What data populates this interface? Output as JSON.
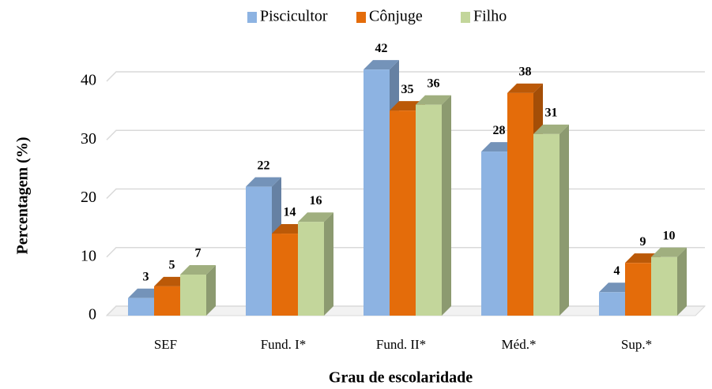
{
  "chart_data": {
    "type": "bar3d",
    "x_label": "Grau de escolaridade",
    "y_label": "Percentagem (%)",
    "categories": [
      "SEF",
      "Fund. I*",
      "Fund. II*",
      "Méd.*",
      "Sup.*"
    ],
    "series": [
      {
        "name": "Piscicultor",
        "color": "#8db3e2",
        "values": [
          3,
          22,
          42,
          28,
          4
        ]
      },
      {
        "name": "Cônjuge",
        "color": "#e46c0a",
        "values": [
          5,
          14,
          35,
          38,
          9
        ]
      },
      {
        "name": "Filho",
        "color": "#c3d69b",
        "values": [
          7,
          16,
          36,
          31,
          10
        ]
      }
    ],
    "ylim": [
      0,
      40
    ],
    "yticks": [
      0,
      10,
      20,
      30,
      40
    ],
    "grid": true,
    "legend": "top"
  }
}
